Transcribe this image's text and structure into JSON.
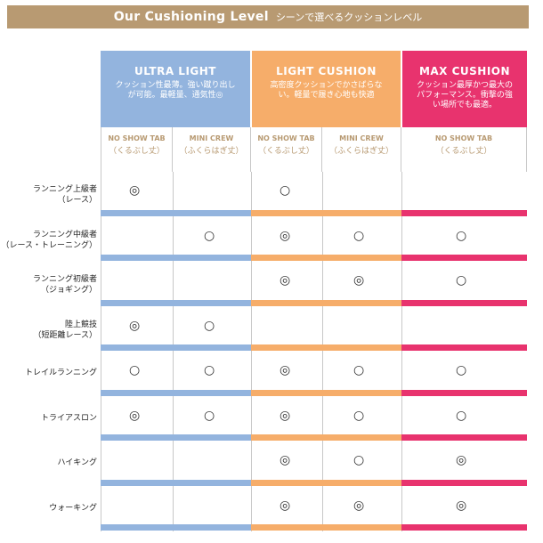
{
  "title": {
    "en": "Our Cushioning Level",
    "jp": "シーンで選べるクッションレベル"
  },
  "levels": [
    {
      "name": "ULTRA LIGHT",
      "desc": "クッション性最薄。強い蹴り出しが可能。最軽量、通気性◎"
    },
    {
      "name": "LIGHT CUSHION",
      "desc": "高密度クッションでかさばらない。軽量で履き心地も快適"
    },
    {
      "name": "MAX CUSHION",
      "desc": "クッション最厚かつ最大のパフォーマンス。衝撃の強い場所でも最適。"
    }
  ],
  "subcols": [
    {
      "tab": "NO SHOW TAB",
      "jp": "（くるぶし丈）"
    },
    {
      "tab": "MINI CREW",
      "jp": "（ふくらはぎ丈）"
    },
    {
      "tab": "NO SHOW TAB",
      "jp": "（くるぶし丈）"
    },
    {
      "tab": "MINI CREW",
      "jp": "（ふくらはぎ丈）"
    },
    {
      "tab": "NO SHOW TAB",
      "jp": "（くるぶし丈）"
    }
  ],
  "rows": [
    {
      "label": "ランニング上級者\n（レース）",
      "marks": [
        "◎",
        "",
        "○",
        "",
        ""
      ]
    },
    {
      "label": "ランニング中級者\n（レース・トレーニング）",
      "marks": [
        "",
        "○",
        "◎",
        "○",
        "○"
      ]
    },
    {
      "label": "ランニング初級者\n（ジョギング）",
      "marks": [
        "",
        "",
        "◎",
        "◎",
        "○"
      ]
    },
    {
      "label": "陸上競技\n（短距離レース）",
      "marks": [
        "◎",
        "○",
        "",
        "",
        ""
      ]
    },
    {
      "label": "トレイルランニング",
      "marks": [
        "○",
        "○",
        "◎",
        "○",
        "○"
      ]
    },
    {
      "label": "トライアスロン",
      "marks": [
        "◎",
        "○",
        "◎",
        "○",
        "○"
      ]
    },
    {
      "label": "ハイキング",
      "marks": [
        "",
        "",
        "◎",
        "○",
        "◎"
      ]
    },
    {
      "label": "ウォーキング",
      "marks": [
        "",
        "",
        "◎",
        "◎",
        "◎"
      ]
    }
  ],
  "colors": {
    "ultra": "#93b4de",
    "light": "#f6ad6a",
    "max": "#e8336e",
    "gold": "#b89a72"
  }
}
